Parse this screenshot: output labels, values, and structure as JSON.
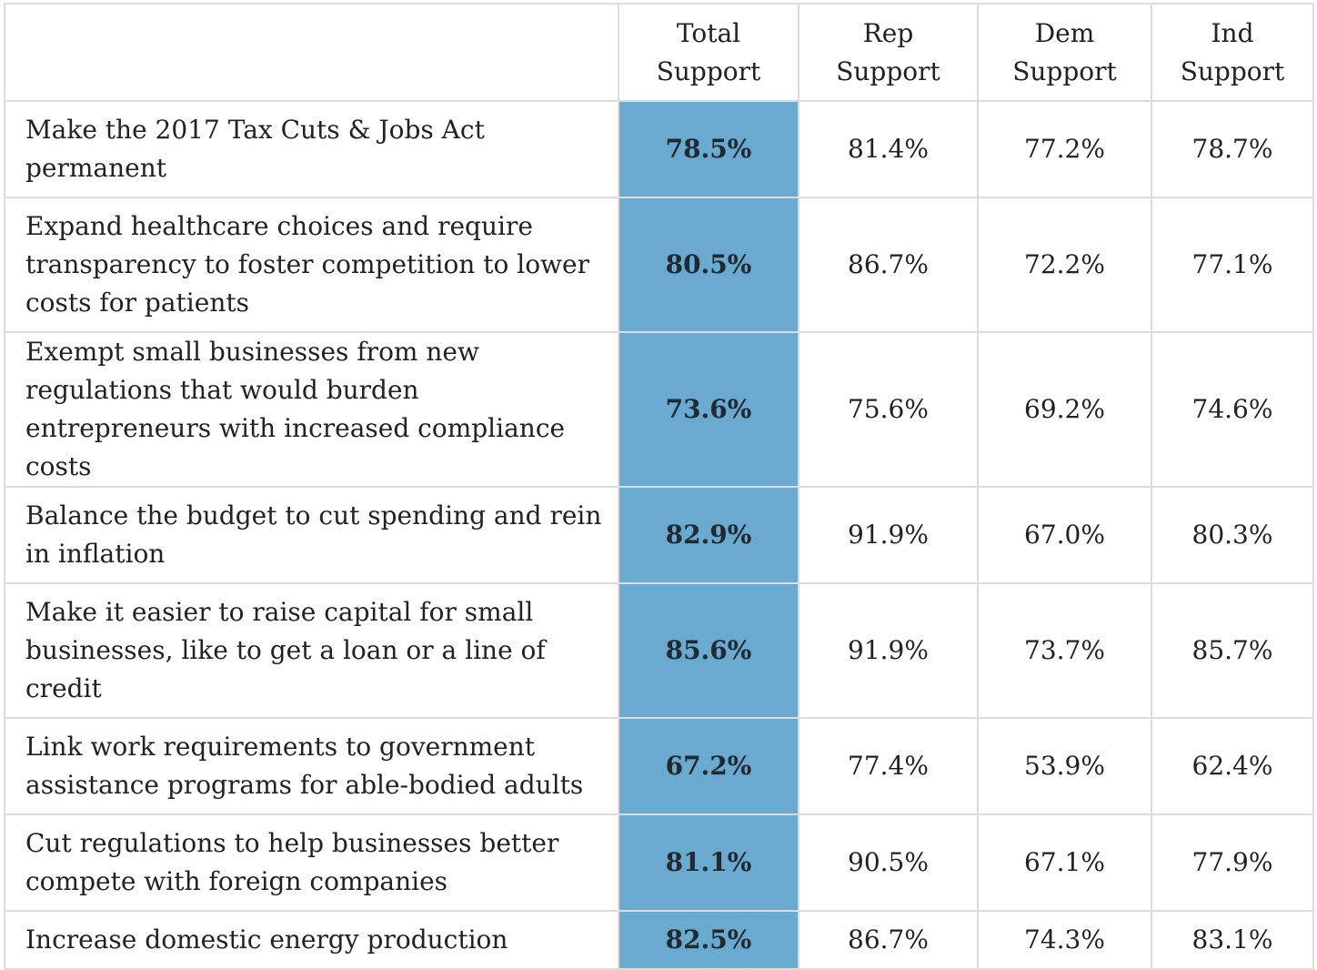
{
  "headers": [
    "",
    "Total\nSupport",
    "Rep\nSupport",
    "Dem\nSupport",
    "Ind\nSupport"
  ],
  "header_lines": [
    [
      "",
      ""
    ],
    [
      "Total",
      "Support"
    ],
    [
      "Rep",
      "Support"
    ],
    [
      "Dem",
      "Support"
    ],
    [
      "Ind",
      "Support"
    ]
  ],
  "rows": [
    {
      "policy": "Make the 2017 Tax Cuts & Jobs Act permanent",
      "total": "78.5%",
      "rep": "81.4%",
      "dem": "77.2%",
      "ind": "78.7%"
    },
    {
      "policy": "Expand healthcare choices and require transparency to foster competition to lower costs for patients",
      "total": "80.5%",
      "rep": "86.7%",
      "dem": "72.2%",
      "ind": "77.1%"
    },
    {
      "policy": "Exempt small businesses from new regulations that would burden entrepreneurs with increased compliance costs",
      "total": "73.6%",
      "rep": "75.6%",
      "dem": "69.2%",
      "ind": "74.6%"
    },
    {
      "policy": "Balance the budget to cut spending and rein in inflation",
      "total": "82.9%",
      "rep": "91.9%",
      "dem": "67.0%",
      "ind": "80.3%"
    },
    {
      "policy": "Make it easier to raise capital for small businesses, like to get a loan or a line of credit",
      "total": "85.6%",
      "rep": "91.9%",
      "dem": "73.7%",
      "ind": "85.7%"
    },
    {
      "policy": "Link work requirements to government assistance programs for able-bodied adults",
      "total": "67.2%",
      "rep": "77.4%",
      "dem": "53.9%",
      "ind": "62.4%"
    },
    {
      "policy": "Cut regulations to help businesses better compete with foreign companies",
      "total": "81.1%",
      "rep": "90.5%",
      "dem": "67.1%",
      "ind": "77.9%"
    },
    {
      "policy": "Increase domestic energy production",
      "total": "82.5%",
      "rep": "86.7%",
      "dem": "74.3%",
      "ind": "83.1%"
    }
  ],
  "colors": {
    "highlight": "#6aa9d0",
    "border": "#dcdcdc"
  }
}
